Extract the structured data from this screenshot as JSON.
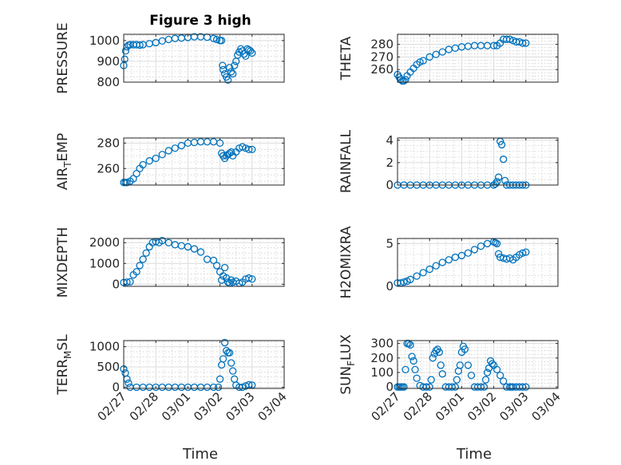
{
  "figure": {
    "title": "Figure 3 high",
    "xlabel": "Time"
  },
  "colors": {
    "series": "#0072BD",
    "axis": "#262626",
    "background": "#ffffff"
  },
  "x_ticks": [
    "02/27",
    "02/28",
    "03/01",
    "03/02",
    "03/03",
    "03/04"
  ],
  "chart_data": [
    {
      "type": "scatter",
      "ylabel": "PRESSURE",
      "xlim": [
        "02/27",
        "03/04"
      ],
      "ylim": [
        800,
        1030
      ],
      "yticks": [
        "800",
        "900",
        "1000"
      ],
      "show_xticks": false,
      "grid": true,
      "x_days": [
        0.0,
        0.03,
        0.06,
        0.1,
        0.15,
        0.2,
        0.3,
        0.4,
        0.5,
        0.6,
        0.8,
        1.0,
        1.2,
        1.4,
        1.6,
        1.8,
        2.0,
        2.2,
        2.4,
        2.6,
        2.8,
        2.9,
        3.0,
        3.05,
        3.08,
        3.1,
        3.15,
        3.2,
        3.25,
        3.3,
        3.35,
        3.4,
        3.45,
        3.5,
        3.55,
        3.6,
        3.65,
        3.7,
        3.75,
        3.8,
        3.85,
        3.9,
        3.95,
        4.0
      ],
      "y": [
        880,
        910,
        950,
        970,
        978,
        980,
        980,
        980,
        978,
        980,
        985,
        990,
        998,
        1005,
        1010,
        1012,
        1015,
        1018,
        1018,
        1016,
        1010,
        1005,
        1000,
        1000,
        880,
        860,
        840,
        825,
        810,
        870,
        850,
        840,
        880,
        900,
        930,
        945,
        960,
        950,
        935,
        925,
        960,
        955,
        950,
        940
      ]
    },
    {
      "type": "scatter",
      "ylabel": "THETA",
      "xlim": [
        "02/27",
        "03/04"
      ],
      "ylim": [
        250,
        288
      ],
      "yticks": [
        "260",
        "270",
        "280"
      ],
      "show_xticks": false,
      "grid": true,
      "x_days": [
        0.0,
        0.05,
        0.1,
        0.15,
        0.2,
        0.25,
        0.3,
        0.4,
        0.5,
        0.6,
        0.7,
        0.8,
        1.0,
        1.2,
        1.4,
        1.6,
        1.8,
        2.0,
        2.2,
        2.4,
        2.6,
        2.8,
        3.0,
        3.1,
        3.2,
        3.3,
        3.4,
        3.5,
        3.6,
        3.7,
        3.8,
        3.9,
        4.0
      ],
      "y": [
        256,
        254,
        252,
        251,
        251,
        252,
        255,
        258,
        261,
        264,
        266,
        267,
        270,
        272,
        274,
        276,
        277,
        278,
        278.5,
        279,
        279,
        279,
        279,
        279,
        281,
        284,
        284,
        284,
        283,
        282,
        282,
        281,
        281
      ]
    },
    {
      "type": "scatter",
      "ylabel": "AIR_TEMP",
      "xlim": [
        "02/27",
        "03/04"
      ],
      "ylim": [
        247,
        284
      ],
      "yticks": [
        "260",
        "280"
      ],
      "show_xticks": false,
      "grid": true,
      "x_days": [
        0.0,
        0.05,
        0.1,
        0.2,
        0.3,
        0.4,
        0.5,
        0.6,
        0.8,
        1.0,
        1.2,
        1.4,
        1.6,
        1.8,
        2.0,
        2.2,
        2.4,
        2.6,
        2.8,
        3.0,
        3.05,
        3.1,
        3.15,
        3.2,
        3.25,
        3.3,
        3.35,
        3.4,
        3.5,
        3.6,
        3.7,
        3.8,
        3.9,
        4.0
      ],
      "y": [
        249,
        249,
        249,
        250,
        252,
        256,
        260,
        263,
        266,
        268,
        271,
        274,
        276,
        278,
        280,
        280.5,
        281,
        281,
        281,
        280,
        272,
        270,
        268,
        270,
        271,
        272,
        273,
        270,
        273,
        276,
        277,
        276,
        275,
        275
      ]
    },
    {
      "type": "scatter",
      "ylabel": "RAINFALL",
      "xlim": [
        "02/27",
        "03/04"
      ],
      "ylim": [
        0,
        4.2
      ],
      "yticks": [
        "0",
        "2",
        "4"
      ],
      "show_xticks": false,
      "grid": true,
      "x_days": [
        0.0,
        0.2,
        0.4,
        0.6,
        0.8,
        1.0,
        1.2,
        1.4,
        1.6,
        1.8,
        2.0,
        2.2,
        2.4,
        2.6,
        2.8,
        3.0,
        3.05,
        3.1,
        3.15,
        3.2,
        3.25,
        3.3,
        3.35,
        3.4,
        3.5,
        3.6,
        3.7,
        3.8,
        3.9,
        4.0
      ],
      "y": [
        0,
        0,
        0,
        0,
        0,
        0,
        0,
        0,
        0,
        0,
        0,
        0,
        0,
        0,
        0,
        0,
        0.1,
        0.3,
        0.7,
        3.9,
        3.6,
        2.3,
        0.4,
        0,
        0,
        0,
        0,
        0,
        0,
        0
      ]
    },
    {
      "type": "scatter",
      "ylabel": "MIXDEPTH",
      "xlim": [
        "02/27",
        "03/04"
      ],
      "ylim": [
        -100,
        2200
      ],
      "yticks": [
        "0",
        "1000",
        "2000"
      ],
      "show_xticks": false,
      "grid": true,
      "x_days": [
        0.0,
        0.1,
        0.2,
        0.3,
        0.4,
        0.5,
        0.6,
        0.7,
        0.8,
        0.9,
        1.0,
        1.1,
        1.2,
        1.4,
        1.6,
        1.8,
        2.0,
        2.2,
        2.4,
        2.6,
        2.8,
        2.9,
        3.0,
        3.05,
        3.1,
        3.15,
        3.2,
        3.25,
        3.3,
        3.35,
        3.4,
        3.5,
        3.6,
        3.7,
        3.8,
        3.9,
        4.0
      ],
      "y": [
        80,
        100,
        120,
        450,
        600,
        900,
        1200,
        1500,
        1800,
        2000,
        2050,
        2000,
        2100,
        2000,
        1900,
        1850,
        1800,
        1700,
        1550,
        1200,
        1150,
        900,
        600,
        200,
        400,
        800,
        300,
        100,
        50,
        200,
        100,
        150,
        50,
        100,
        250,
        300,
        250
      ]
    },
    {
      "type": "scatter",
      "ylabel": "H2OMIXRA",
      "xlim": [
        "02/27",
        "03/04"
      ],
      "ylim": [
        0,
        5.6
      ],
      "yticks": [
        "0",
        "5"
      ],
      "show_xticks": false,
      "grid": true,
      "x_days": [
        0.0,
        0.1,
        0.2,
        0.3,
        0.4,
        0.6,
        0.8,
        1.0,
        1.2,
        1.4,
        1.6,
        1.8,
        2.0,
        2.2,
        2.4,
        2.6,
        2.8,
        3.0,
        3.05,
        3.1,
        3.15,
        3.2,
        3.3,
        3.4,
        3.5,
        3.6,
        3.7,
        3.8,
        3.9,
        4.0
      ],
      "y": [
        0.4,
        0.4,
        0.5,
        0.6,
        0.8,
        1.2,
        1.6,
        2.0,
        2.4,
        2.8,
        3.1,
        3.4,
        3.6,
        3.9,
        4.3,
        4.7,
        5.0,
        5.2,
        5.1,
        5.0,
        3.8,
        3.4,
        3.3,
        3.2,
        3.3,
        3.1,
        3.4,
        3.7,
        3.9,
        4.0
      ]
    },
    {
      "type": "scatter",
      "ylabel": "TERR_MSL",
      "xlim": [
        "02/27",
        "03/04"
      ],
      "ylim": [
        -30,
        1150
      ],
      "yticks": [
        "0",
        "500",
        "1000"
      ],
      "show_xticks": true,
      "grid": true,
      "x_days": [
        0.0,
        0.05,
        0.1,
        0.15,
        0.2,
        0.4,
        0.6,
        0.8,
        1.0,
        1.2,
        1.4,
        1.6,
        1.8,
        2.0,
        2.2,
        2.4,
        2.6,
        2.8,
        2.95,
        3.0,
        3.05,
        3.1,
        3.15,
        3.2,
        3.25,
        3.3,
        3.35,
        3.4,
        3.45,
        3.5,
        3.6,
        3.7,
        3.8,
        3.9,
        4.0
      ],
      "y": [
        450,
        350,
        200,
        100,
        0,
        0,
        0,
        0,
        0,
        0,
        0,
        0,
        0,
        0,
        0,
        0,
        0,
        0,
        0,
        200,
        550,
        700,
        1100,
        900,
        850,
        850,
        600,
        400,
        200,
        50,
        0,
        0,
        30,
        60,
        50
      ]
    },
    {
      "type": "scatter",
      "ylabel": "SUN_FLUX",
      "xlim": [
        "02/27",
        "03/04"
      ],
      "ylim": [
        -10,
        320
      ],
      "yticks": [
        "0",
        "100",
        "200",
        "300"
      ],
      "show_xticks": true,
      "grid": true,
      "x_days": [
        0.0,
        0.05,
        0.1,
        0.15,
        0.2,
        0.25,
        0.3,
        0.35,
        0.4,
        0.45,
        0.5,
        0.55,
        0.6,
        0.7,
        0.8,
        0.9,
        1.0,
        1.05,
        1.1,
        1.15,
        1.2,
        1.25,
        1.3,
        1.35,
        1.4,
        1.5,
        1.6,
        1.7,
        1.8,
        1.85,
        1.9,
        1.95,
        2.0,
        2.05,
        2.1,
        2.2,
        2.3,
        2.4,
        2.5,
        2.6,
        2.7,
        2.75,
        2.8,
        2.85,
        2.9,
        2.95,
        3.0,
        3.1,
        3.2,
        3.3,
        3.4,
        3.5,
        3.55,
        3.6,
        3.7,
        3.8,
        3.9,
        4.0
      ],
      "y": [
        0,
        0,
        0,
        0,
        0,
        120,
        300,
        300,
        290,
        210,
        180,
        120,
        60,
        10,
        0,
        0,
        0,
        50,
        200,
        230,
        250,
        260,
        240,
        150,
        90,
        0,
        0,
        0,
        0,
        50,
        110,
        150,
        240,
        280,
        260,
        150,
        80,
        0,
        0,
        0,
        0,
        50,
        100,
        130,
        180,
        160,
        150,
        120,
        80,
        40,
        0,
        0,
        0,
        0,
        0,
        0,
        0,
        0
      ]
    }
  ]
}
